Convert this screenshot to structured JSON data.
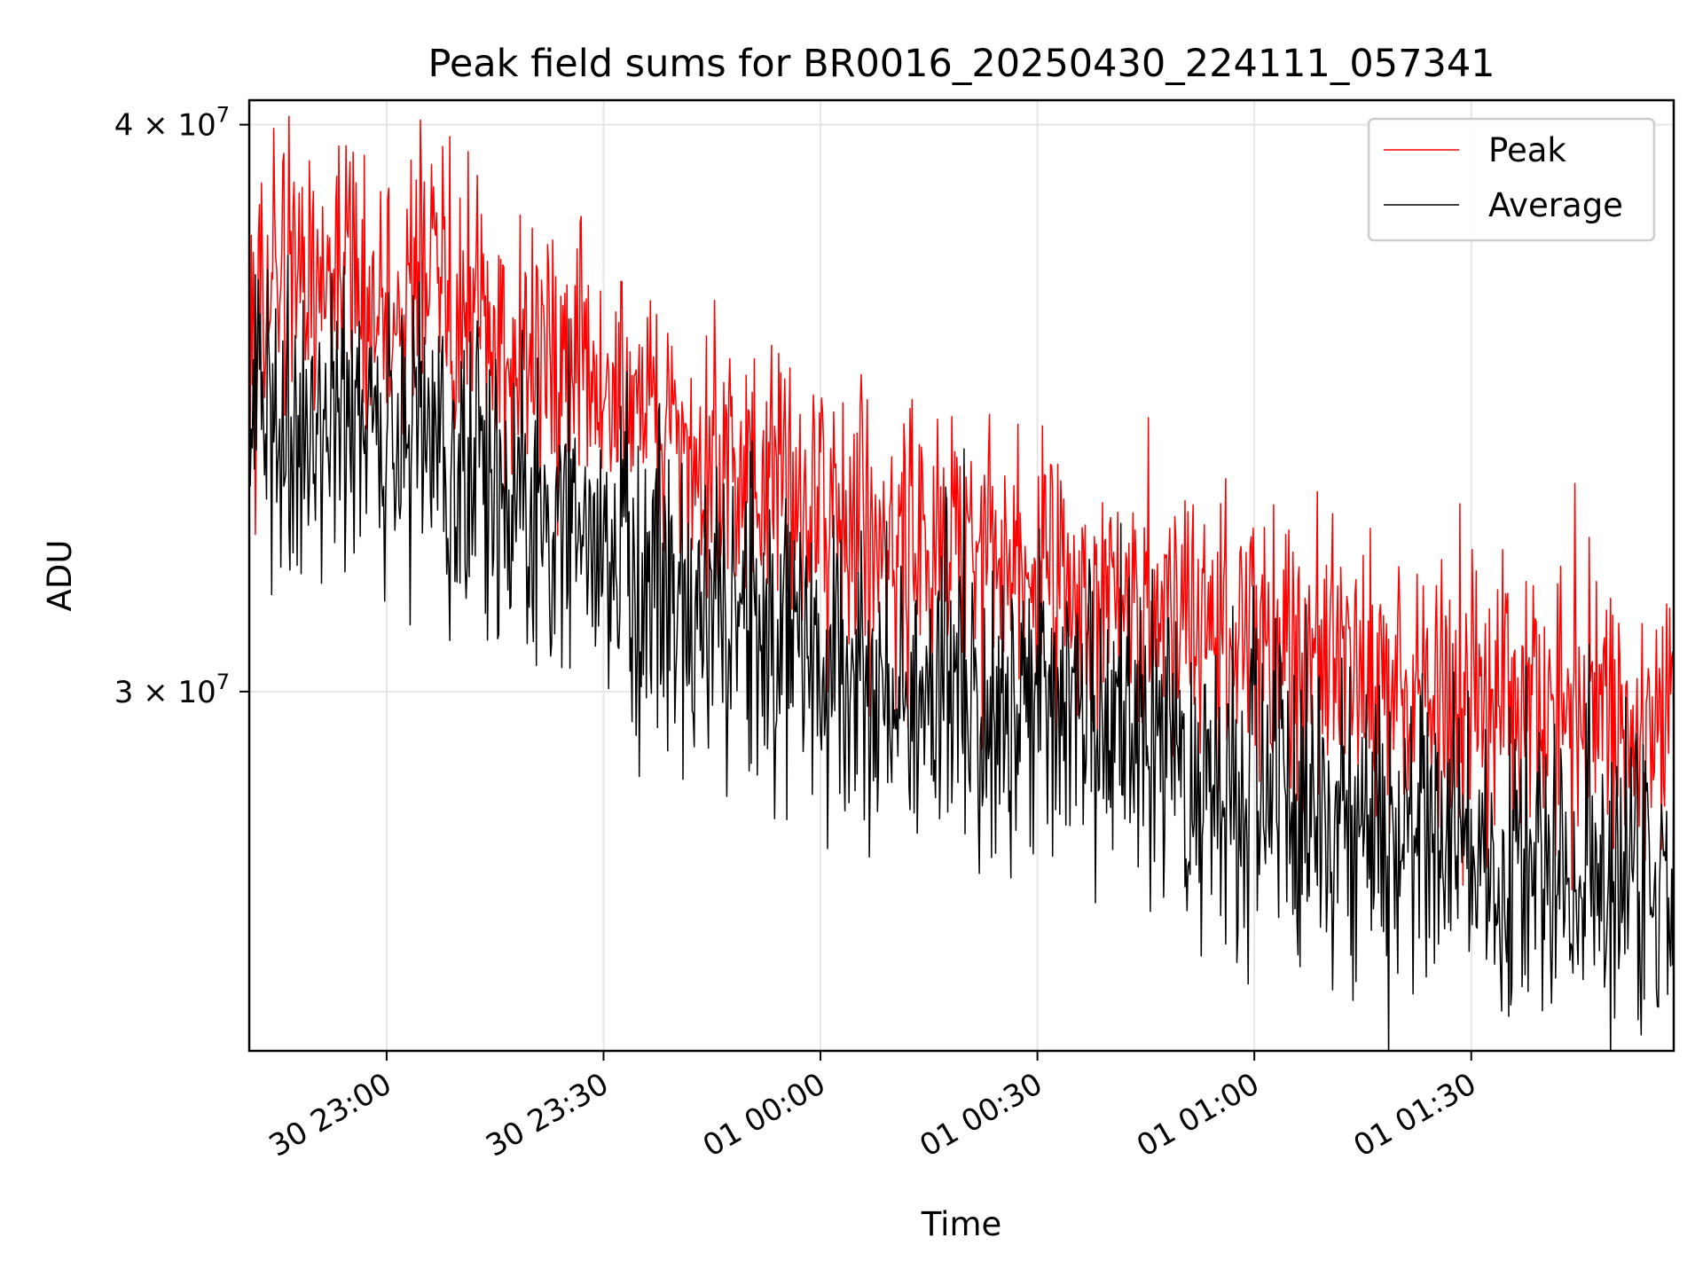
{
  "chart_data": {
    "type": "line",
    "title": "Peak field sums for BR0016_20250430_224111_057341",
    "xlabel": "Time",
    "ylabel": "ADU",
    "y_scale": "log",
    "xlim": [
      "2025-04-30T22:41:00",
      "2025-05-01T01:58:00"
    ],
    "ylim": [
      25000000,
      40500000
    ],
    "x_ticks": [
      {
        "value": "2025-04-30T23:00:00",
        "label": "30 23:00"
      },
      {
        "value": "2025-04-30T23:30:00",
        "label": "30 23:30"
      },
      {
        "value": "2025-05-01T00:00:00",
        "label": "01 00:00"
      },
      {
        "value": "2025-05-01T00:30:00",
        "label": "01 00:30"
      },
      {
        "value": "2025-05-01T01:00:00",
        "label": "01 01:00"
      },
      {
        "value": "2025-05-01T01:30:00",
        "label": "01 01:30"
      }
    ],
    "y_ticks": [
      {
        "value": 40000000,
        "mantissa": "4",
        "exponent": "7"
      },
      {
        "value": 30000000,
        "mantissa": "3",
        "exponent": "7"
      }
    ],
    "grid": true,
    "legend_position": "top-right",
    "series": [
      {
        "name": "Peak",
        "color": "#ff0000",
        "x": [
          "2025-04-30T22:41:00",
          "2025-04-30T22:50:00",
          "2025-04-30T23:00:00",
          "2025-04-30T23:05:00",
          "2025-04-30T23:10:00",
          "2025-04-30T23:20:00",
          "2025-04-30T23:30:00",
          "2025-04-30T23:40:00",
          "2025-04-30T23:50:00",
          "2025-05-01T00:00:00",
          "2025-05-01T00:10:00",
          "2025-05-01T00:20:00",
          "2025-05-01T00:30:00",
          "2025-05-01T00:40:00",
          "2025-05-01T00:50:00",
          "2025-05-01T01:00:00",
          "2025-05-01T01:10:00",
          "2025-05-01T01:20:00",
          "2025-05-01T01:30:00",
          "2025-05-01T01:40:00",
          "2025-05-01T01:50:00",
          "2025-05-01T01:58:00"
        ],
        "values": [
          37000000,
          36600000,
          36400000,
          37500000,
          36200000,
          35500000,
          35000000,
          34000000,
          33500000,
          33000000,
          32500000,
          32200000,
          32000000,
          31500000,
          31200000,
          30800000,
          30500000,
          30100000,
          29800000,
          29700000,
          29700000,
          29600000
        ]
      },
      {
        "name": "Average",
        "color": "#000000",
        "x": [
          "2025-04-30T22:41:00",
          "2025-04-30T22:50:00",
          "2025-04-30T23:00:00",
          "2025-04-30T23:05:00",
          "2025-04-30T23:10:00",
          "2025-04-30T23:20:00",
          "2025-04-30T23:30:00",
          "2025-04-30T23:40:00",
          "2025-04-30T23:50:00",
          "2025-05-01T00:00:00",
          "2025-05-01T00:10:00",
          "2025-05-01T00:20:00",
          "2025-05-01T00:30:00",
          "2025-05-01T00:40:00",
          "2025-05-01T00:50:00",
          "2025-05-01T01:00:00",
          "2025-05-01T01:10:00",
          "2025-05-01T01:20:00",
          "2025-05-01T01:30:00",
          "2025-05-01T01:40:00",
          "2025-05-01T01:50:00",
          "2025-05-01T01:58:00"
        ],
        "values": [
          34500000,
          34200000,
          34300000,
          34600000,
          33900000,
          32800000,
          32500000,
          31500000,
          31000000,
          30600000,
          30100000,
          29800000,
          29600000,
          29200000,
          29000000,
          28600000,
          28200000,
          27900000,
          27600000,
          27500000,
          27400000,
          27300000
        ]
      }
    ]
  }
}
